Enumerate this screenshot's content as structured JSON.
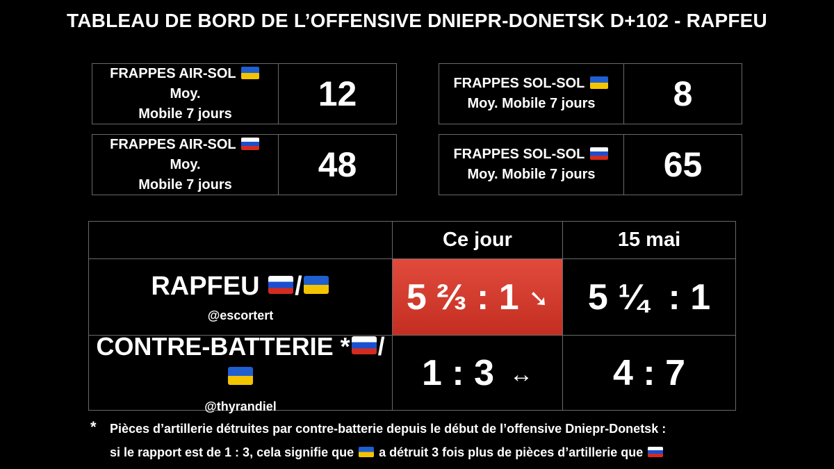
{
  "title": "TABLEAU DE BORD DE L’OFFENSIVE DNIEPR-DONETSK D+102 - RAPFEU",
  "stats": {
    "air_ua": {
      "label_pre": "FRAPPES AIR-SOL",
      "label_post": "Moy.",
      "label_line2": "Mobile 7 jours",
      "value": "12",
      "flag": "ukraine-flag"
    },
    "sol_ua": {
      "label_pre": "FRAPPES SOL-SOL",
      "label_line2": "Moy. Mobile 7 jours",
      "value": "8",
      "flag": "ukraine-flag"
    },
    "air_ru": {
      "label_pre": "FRAPPES AIR-SOL",
      "label_post": "Moy.",
      "label_line2": "Mobile 7 jours",
      "value": "48",
      "flag": "russia-flag"
    },
    "sol_ru": {
      "label_pre": "FRAPPES SOL-SOL",
      "label_line2": "Moy. Mobile 7 jours",
      "value": "65",
      "flag": "russia-flag"
    }
  },
  "table": {
    "col_today": "Ce jour",
    "col_ref": "15 mai",
    "rapfeu": {
      "name": "RAPFEU",
      "separator": "/",
      "handle": "@escortert",
      "today": "5 ⅔ : 1",
      "today_trend_icon": "arrow-down-right",
      "today_trend_glyph": "➘",
      "ref": "5 ¼  : 1"
    },
    "contre": {
      "name": "CONTRE-BATTERIE *",
      "separator": "/",
      "handle": "@thyrandiel",
      "today": "1 : 3",
      "today_trend_icon": "arrow-left-right",
      "today_trend_glyph": "↔",
      "ref": "4 : 7"
    }
  },
  "footnote": {
    "star": "*",
    "line1": "Pièces d’artillerie détruites par contre-batterie depuis le début de l’offensive Dniepr-Donetsk :",
    "line2_a": "si le rapport est de 1 : 3, cela signifie que",
    "line2_b": "a détruit 3 fois plus de pièces d’artillerie que"
  },
  "colors": {
    "background": "#000000",
    "text": "#ffffff",
    "border": "#6a6a6a",
    "highlight": "#d63b2e",
    "ukraine_blue": "#1f5fd0",
    "ukraine_yellow": "#f4c400",
    "russia_blue": "#1a4fd0",
    "russia_red": "#d52b1e"
  }
}
